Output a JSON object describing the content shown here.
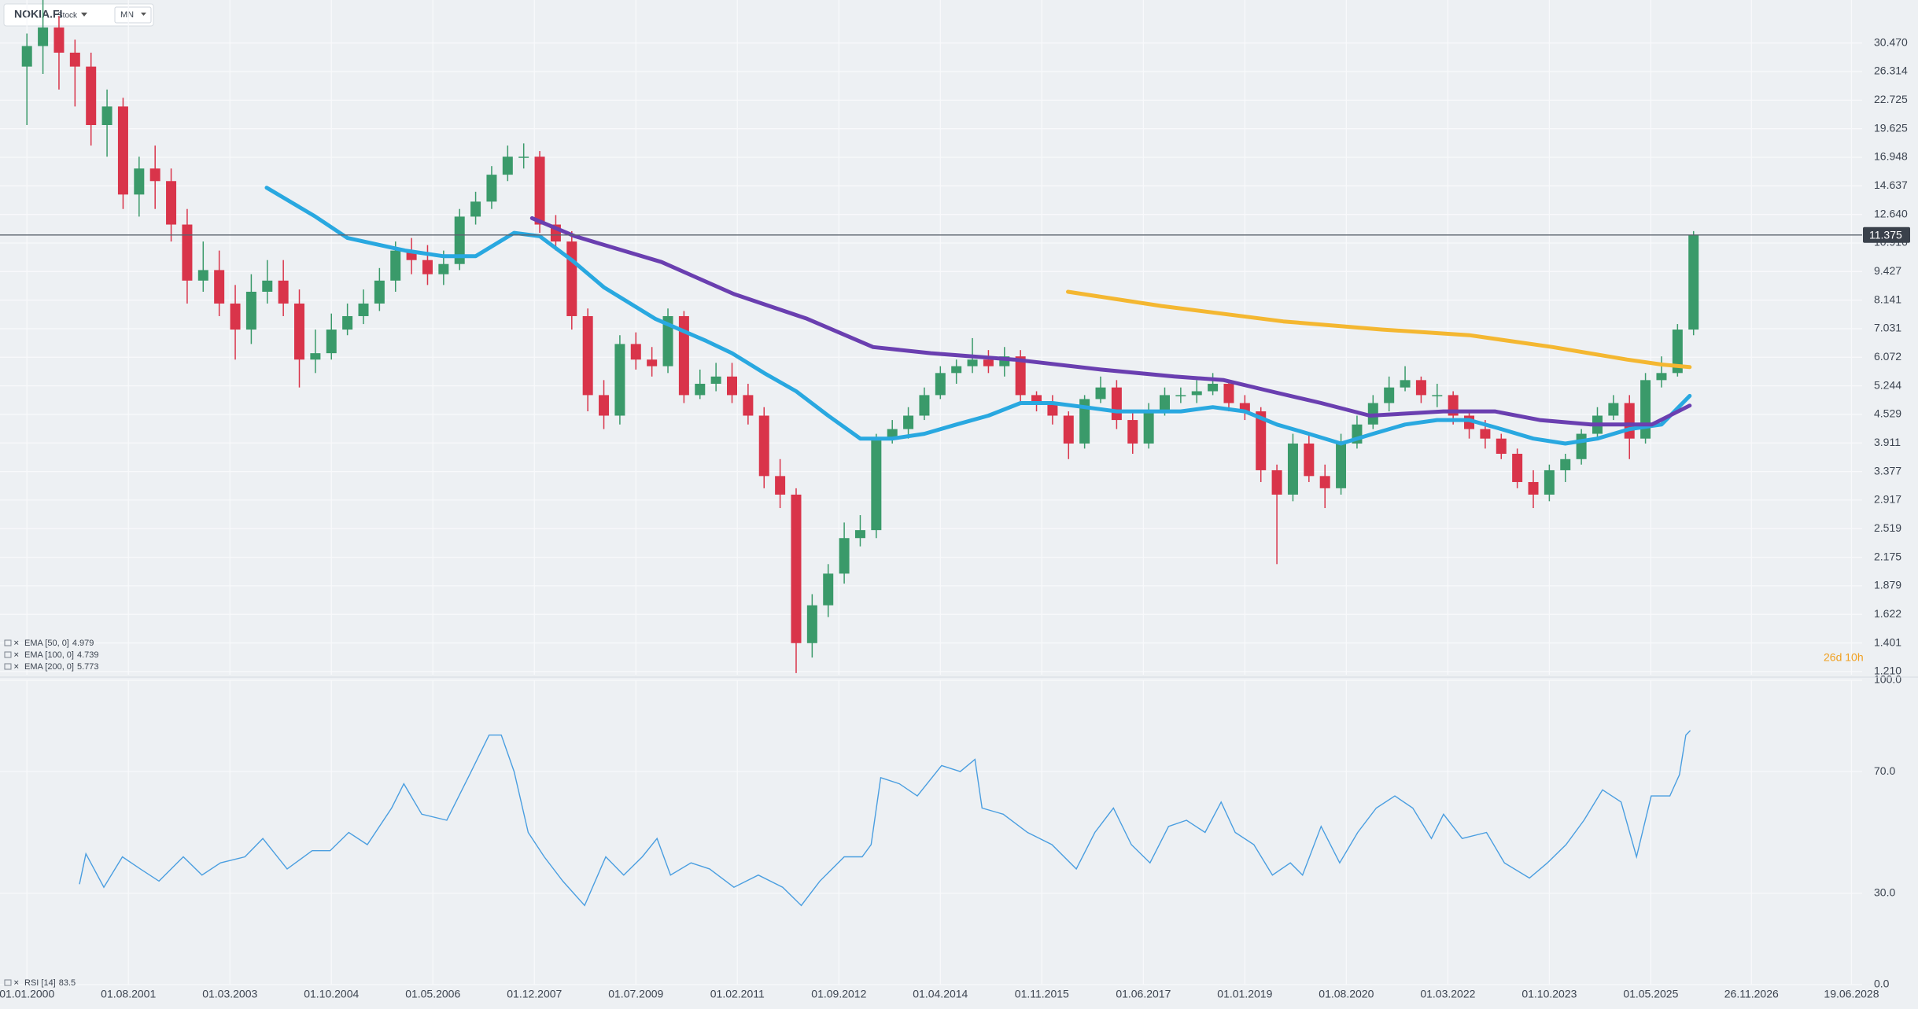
{
  "chart_data": {
    "type": "candlestick",
    "symbol": "NOKIA.FI",
    "instrument_type": "Stock",
    "interval": "MN",
    "countdown": "26d 10h",
    "up_color": "#3a9a6a",
    "down_color": "#d9344a",
    "log_scale": true,
    "grid": true,
    "xlim": [
      1999.58,
      2028.63
    ],
    "xticks": [
      {
        "value": 2000.0,
        "label": "01.01.2000"
      },
      {
        "value": 2001.583,
        "label": "01.08.2001"
      },
      {
        "value": 2003.167,
        "label": "01.03.2003"
      },
      {
        "value": 2004.75,
        "label": "01.10.2004"
      },
      {
        "value": 2006.333,
        "label": "01.05.2006"
      },
      {
        "value": 2007.917,
        "label": "01.12.2007"
      },
      {
        "value": 2009.5,
        "label": "01.07.2009"
      },
      {
        "value": 2011.083,
        "label": "01.02.2011"
      },
      {
        "value": 2012.667,
        "label": "01.09.2012"
      },
      {
        "value": 2014.25,
        "label": "01.04.2014"
      },
      {
        "value": 2015.833,
        "label": "01.11.2015"
      },
      {
        "value": 2017.417,
        "label": "01.06.2017"
      },
      {
        "value": 2019.0,
        "label": "01.01.2019"
      },
      {
        "value": 2020.583,
        "label": "01.08.2020"
      },
      {
        "value": 2022.167,
        "label": "01.03.2022"
      },
      {
        "value": 2023.75,
        "label": "01.10.2023"
      },
      {
        "value": 2025.333,
        "label": "01.05.2025"
      },
      {
        "value": 2026.903,
        "label": "26.11.2026"
      },
      {
        "value": 2028.464,
        "label": "19.06.2028"
      }
    ],
    "ylim": [
      1.19,
      38
    ],
    "yticks": [
      {
        "value": 30.47,
        "label": "30.470"
      },
      {
        "value": 26.314,
        "label": "26.314"
      },
      {
        "value": 22.725,
        "label": "22.725"
      },
      {
        "value": 19.625,
        "label": "19.625"
      },
      {
        "value": 16.948,
        "label": "16.948"
      },
      {
        "value": 14.637,
        "label": "14.637"
      },
      {
        "value": 12.64,
        "label": "12.640"
      },
      {
        "value": 10.916,
        "label": "10.916"
      },
      {
        "value": 9.427,
        "label": "9.427"
      },
      {
        "value": 8.141,
        "label": "8.141"
      },
      {
        "value": 7.031,
        "label": "7.031"
      },
      {
        "value": 6.072,
        "label": "6.072"
      },
      {
        "value": 5.244,
        "label": "5.244"
      },
      {
        "value": 4.529,
        "label": "4.529"
      },
      {
        "value": 3.911,
        "label": "3.911"
      },
      {
        "value": 3.377,
        "label": "3.377"
      },
      {
        "value": 2.917,
        "label": "2.917"
      },
      {
        "value": 2.519,
        "label": "2.519"
      },
      {
        "value": 2.175,
        "label": "2.175"
      },
      {
        "value": 1.879,
        "label": "1.879"
      },
      {
        "value": 1.622,
        "label": "1.622"
      },
      {
        "value": 1.401,
        "label": "1.401"
      },
      {
        "value": 1.21,
        "label": "1.210"
      }
    ],
    "last_price": 11.375,
    "x": [
      2000,
      2000.25,
      2000.5,
      2000.75,
      2001,
      2001.25,
      2001.5,
      2001.75,
      2002,
      2002.25,
      2002.5,
      2002.75,
      2003,
      2003.25,
      2003.5,
      2003.75,
      2004,
      2004.25,
      2004.5,
      2004.75,
      2005,
      2005.25,
      2005.5,
      2005.75,
      2006,
      2006.25,
      2006.5,
      2006.75,
      2007,
      2007.25,
      2007.5,
      2007.75,
      2008,
      2008.25,
      2008.5,
      2008.75,
      2009,
      2009.25,
      2009.5,
      2009.75,
      2010,
      2010.25,
      2010.5,
      2010.75,
      2011,
      2011.25,
      2011.5,
      2011.75,
      2012,
      2012.25,
      2012.5,
      2012.75,
      2013,
      2013.25,
      2013.5,
      2013.75,
      2014,
      2014.25,
      2014.5,
      2014.75,
      2015,
      2015.25,
      2015.5,
      2015.75,
      2016,
      2016.25,
      2016.5,
      2016.75,
      2017,
      2017.25,
      2017.5,
      2017.75,
      2018,
      2018.25,
      2018.5,
      2018.75,
      2019,
      2019.25,
      2019.5,
      2019.75,
      2020,
      2020.25,
      2020.5,
      2020.75,
      2021,
      2021.25,
      2021.5,
      2021.75,
      2022,
      2022.25,
      2022.5,
      2022.75,
      2023,
      2023.25,
      2023.5,
      2023.75,
      2024,
      2024.25,
      2024.5,
      2024.75,
      2025,
      2025.25,
      2025.5,
      2025.75,
      2026
    ],
    "open": [
      27,
      30,
      33,
      29,
      27,
      20,
      22,
      14,
      16,
      15,
      12,
      9,
      9.5,
      8,
      7,
      8.5,
      9,
      8,
      6,
      6.2,
      7,
      7.5,
      8,
      9,
      10.5,
      10,
      9.3,
      9.8,
      12.5,
      13.5,
      15.5,
      17,
      17,
      12,
      11,
      7.5,
      5,
      4.5,
      6.5,
      6,
      5.8,
      7.5,
      5,
      5.3,
      5.5,
      5,
      4.5,
      3.3,
      3,
      1.4,
      1.7,
      2.0,
      2.4,
      2.5,
      4.0,
      4.2,
      4.5,
      5.0,
      5.6,
      5.8,
      6.0,
      5.8,
      6.1,
      5.0,
      4.8,
      4.5,
      3.9,
      4.9,
      5.2,
      4.4,
      3.9,
      4.6,
      5.0,
      5.0,
      5.1,
      5.3,
      4.8,
      4.6,
      3.4,
      3.0,
      3.9,
      3.3,
      3.1,
      3.9,
      4.3,
      4.8,
      5.2,
      5.4,
      5.0,
      5.0,
      4.5,
      4.2,
      4.0,
      3.7,
      3.2,
      3.0,
      3.4,
      3.6,
      4.1,
      4.5,
      4.8,
      4.0,
      5.4,
      5.6,
      7.0
    ],
    "high": [
      32,
      38,
      35,
      31,
      29,
      24,
      23,
      17,
      18,
      16,
      13,
      11,
      10.5,
      8.8,
      9.3,
      10,
      10,
      8.6,
      7,
      7.6,
      8,
      8.6,
      9.6,
      11,
      11.2,
      10.8,
      10.5,
      13,
      14.2,
      16.2,
      18,
      18.2,
      17.5,
      12.6,
      11.6,
      7.8,
      5.4,
      6.8,
      6.9,
      6.4,
      7.8,
      7.7,
      5.7,
      5.9,
      5.9,
      5.3,
      4.7,
      3.6,
      3.1,
      1.8,
      2.1,
      2.6,
      2.7,
      4.1,
      4.4,
      4.7,
      5.2,
      5.8,
      6.0,
      6.7,
      6.3,
      6.4,
      6.3,
      5.1,
      5.0,
      4.6,
      5.0,
      5.5,
      5.4,
      4.6,
      4.8,
      5.2,
      5.2,
      5.4,
      5.6,
      5.4,
      5.0,
      4.7,
      3.5,
      4.1,
      4.1,
      3.5,
      4.1,
      4.5,
      5.0,
      5.5,
      5.8,
      5.5,
      5.3,
      5.1,
      4.6,
      4.4,
      4.1,
      3.8,
      3.4,
      3.5,
      3.7,
      4.2,
      4.7,
      5.0,
      5.0,
      5.6,
      6.1,
      7.2,
      11.6
    ],
    "low": [
      20,
      26,
      24,
      22,
      18,
      17,
      13,
      12.5,
      13,
      11,
      8,
      8.5,
      7.5,
      6,
      6.5,
      8,
      7.5,
      5.2,
      5.6,
      6,
      6.8,
      7.2,
      7.7,
      8.5,
      9.3,
      8.8,
      8.8,
      9.5,
      12,
      13,
      15,
      16,
      11.5,
      10.5,
      7,
      4.6,
      4.2,
      4.3,
      5.7,
      5.5,
      5.6,
      4.8,
      4.9,
      5.1,
      4.8,
      4.3,
      3.1,
      2.8,
      1.2,
      1.3,
      1.6,
      1.9,
      2.3,
      2.4,
      3.9,
      4.0,
      4.4,
      4.9,
      5.3,
      5.6,
      5.6,
      5.5,
      4.8,
      4.6,
      4.3,
      3.6,
      3.8,
      4.8,
      4.2,
      3.7,
      3.8,
      4.5,
      4.8,
      4.8,
      5.0,
      4.6,
      4.4,
      3.2,
      2.1,
      2.9,
      3.2,
      2.8,
      3.0,
      3.8,
      4.2,
      4.6,
      5.1,
      4.8,
      4.7,
      4.3,
      4.0,
      3.8,
      3.6,
      3.1,
      2.8,
      2.9,
      3.2,
      3.5,
      4.0,
      4.4,
      3.6,
      3.9,
      5.2,
      5.5,
      6.8
    ],
    "close": [
      30,
      33,
      29,
      27,
      20,
      22,
      14,
      16,
      15,
      12,
      9,
      9.5,
      8,
      7,
      8.5,
      9,
      8,
      6,
      6.2,
      7,
      7.5,
      8,
      9,
      10.5,
      10,
      9.3,
      9.8,
      12.5,
      13.5,
      15.5,
      17,
      17,
      12,
      11,
      7.5,
      5,
      4.5,
      6.5,
      6,
      5.8,
      7.5,
      5,
      5.3,
      5.5,
      5,
      4.5,
      3.3,
      3,
      1.4,
      1.7,
      2.0,
      2.4,
      2.5,
      4.0,
      4.2,
      4.5,
      5.0,
      5.6,
      5.8,
      6.0,
      5.8,
      6.1,
      5.0,
      4.8,
      4.5,
      3.9,
      4.9,
      5.2,
      4.4,
      3.9,
      4.6,
      5.0,
      5.0,
      5.1,
      5.3,
      4.8,
      4.6,
      3.4,
      3.0,
      3.9,
      3.3,
      3.1,
      3.9,
      4.3,
      4.8,
      5.2,
      5.4,
      5.0,
      5.0,
      4.5,
      4.2,
      4.0,
      3.7,
      3.2,
      3.0,
      3.4,
      3.6,
      4.1,
      4.5,
      4.8,
      4.0,
      5.4,
      5.6,
      7.0,
      11.375
    ],
    "overlays": [
      {
        "name": "EMA [50, 0]",
        "color": "#29a8e0",
        "x": [
          2003.74,
          2004.5,
          2005.0,
          2005.9,
          2006.5,
          2007.0,
          2007.6,
          2008.0,
          2008.5,
          2009.0,
          2009.8,
          2010.6,
          2011.0,
          2011.5,
          2012.0,
          2012.5,
          2013.0,
          2013.5,
          2014.0,
          2014.5,
          2015.0,
          2015.5,
          2016.0,
          2016.5,
          2017.0,
          2017.5,
          2018.0,
          2018.5,
          2019.0,
          2019.5,
          2020.0,
          2020.5,
          2021.0,
          2021.5,
          2022.0,
          2022.5,
          2023.0,
          2023.5,
          2024.0,
          2024.5,
          2025.0,
          2025.5,
          2025.94
        ],
        "values": [
          14.5,
          12.5,
          11.2,
          10.5,
          10.2,
          10.2,
          11.5,
          11.3,
          10.0,
          8.7,
          7.4,
          6.6,
          6.2,
          5.6,
          5.1,
          4.5,
          4.0,
          4.0,
          4.1,
          4.3,
          4.5,
          4.8,
          4.8,
          4.7,
          4.6,
          4.6,
          4.6,
          4.7,
          4.6,
          4.3,
          4.1,
          3.9,
          4.1,
          4.3,
          4.4,
          4.4,
          4.2,
          4.0,
          3.9,
          4.0,
          4.2,
          4.3,
          4.979
        ]
      },
      {
        "name": "EMA [100, 0]",
        "color": "#6a3fb0",
        "x": [
          2007.88,
          2008.55,
          2009.9,
          2011.03,
          2012.17,
          2013.2,
          2014.1,
          2015.4,
          2016.75,
          2017.9,
          2018.67,
          2019.4,
          2020.19,
          2020.95,
          2022.1,
          2022.9,
          2023.6,
          2024.4,
          2025.35,
          2025.94
        ],
        "values": [
          12.4,
          11.3,
          9.9,
          8.4,
          7.4,
          6.4,
          6.2,
          6.0,
          5.7,
          5.5,
          5.4,
          5.1,
          4.8,
          4.5,
          4.6,
          4.6,
          4.4,
          4.3,
          4.3,
          4.739
        ]
      },
      {
        "name": "EMA [200, 0]",
        "color": "#f4b731",
        "x": [
          2016.24,
          2017.7,
          2019.6,
          2021.15,
          2022.5,
          2023.8,
          2024.96,
          2025.5,
          2025.94
        ],
        "values": [
          8.5,
          7.9,
          7.3,
          7.0,
          6.8,
          6.4,
          6.0,
          5.85,
          5.773
        ]
      }
    ],
    "rsi": {
      "name": "RSI [14]",
      "color": "#4a9ee0",
      "ylim": [
        0,
        100
      ],
      "yticks": [
        {
          "value": 100,
          "label": "100.0"
        },
        {
          "value": 70,
          "label": "70.0"
        },
        {
          "value": 30,
          "label": "30.0"
        },
        {
          "value": 0,
          "label": "0.0"
        }
      ],
      "x": [
        2000.82,
        2000.92,
        2001.2,
        2001.49,
        2001.77,
        2002.06,
        2002.44,
        2002.73,
        2003.02,
        2003.4,
        2003.68,
        2004.06,
        2004.45,
        2004.73,
        2005.02,
        2005.31,
        2005.69,
        2005.88,
        2006.16,
        2006.55,
        2006.93,
        2007.21,
        2007.4,
        2007.6,
        2007.82,
        2008.07,
        2008.36,
        2008.7,
        2009.03,
        2009.31,
        2009.6,
        2009.83,
        2010.04,
        2010.36,
        2010.65,
        2011.03,
        2011.41,
        2011.79,
        2012.08,
        2012.37,
        2012.75,
        2013.03,
        2013.17,
        2013.32,
        2013.61,
        2013.89,
        2014.27,
        2014.56,
        2014.79,
        2014.9,
        2015.23,
        2015.61,
        2015.99,
        2016.37,
        2016.66,
        2016.95,
        2017.23,
        2017.52,
        2017.81,
        2018.09,
        2018.38,
        2018.63,
        2018.85,
        2019.14,
        2019.43,
        2019.71,
        2019.9,
        2020.19,
        2020.48,
        2020.76,
        2021.05,
        2021.34,
        2021.62,
        2021.91,
        2022.1,
        2022.39,
        2022.77,
        2023.05,
        2023.44,
        2023.72,
        2024.01,
        2024.29,
        2024.58,
        2024.87,
        2025.11,
        2025.34,
        2025.63,
        2025.78,
        2025.88,
        2025.95
      ],
      "values": [
        33,
        43,
        32,
        42,
        38,
        34,
        42,
        36,
        40,
        42,
        48,
        38,
        44,
        44,
        50,
        46,
        58,
        66,
        56,
        54,
        70,
        82,
        82,
        70,
        50,
        42,
        34,
        26,
        42,
        36,
        42,
        48,
        36,
        40,
        38,
        32,
        36,
        32,
        26,
        34,
        42,
        42,
        46,
        68,
        66,
        62,
        72,
        70,
        74,
        58,
        56,
        50,
        46,
        38,
        50,
        58,
        46,
        40,
        52,
        54,
        50,
        60,
        50,
        46,
        36,
        40,
        36,
        52,
        40,
        50,
        58,
        62,
        58,
        48,
        56,
        48,
        50,
        40,
        35,
        40,
        46,
        54,
        64,
        60,
        42,
        62,
        62,
        69,
        82,
        83.5
      ]
    }
  }
}
